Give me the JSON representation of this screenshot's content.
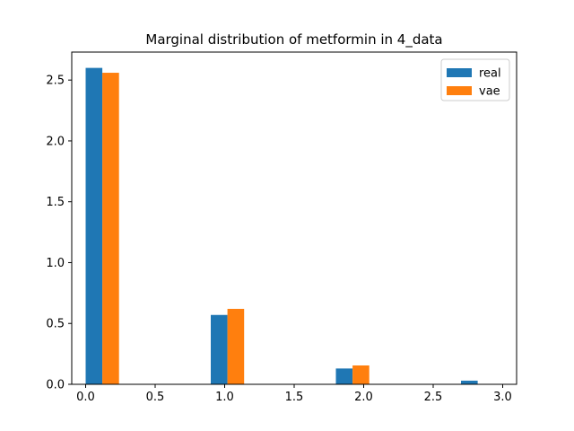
{
  "chart_data": {
    "type": "bar",
    "title": "Marginal distribution of metformin in 4_data",
    "xlabel": "",
    "ylabel": "",
    "xlim": [
      -0.1,
      3.1
    ],
    "ylim": [
      0,
      2.73
    ],
    "xticks": [
      0.0,
      0.5,
      1.0,
      1.5,
      2.0,
      2.5,
      3.0
    ],
    "xtick_labels": [
      "0.0",
      "0.5",
      "1.0",
      "1.5",
      "2.0",
      "2.5",
      "3.0"
    ],
    "yticks": [
      0.0,
      0.5,
      1.0,
      1.5,
      2.0,
      2.5
    ],
    "ytick_labels": [
      "0.0",
      "0.5",
      "1.0",
      "1.5",
      "2.0",
      "2.5"
    ],
    "grid": false,
    "legend_position": "top-right",
    "bar_width": 0.12,
    "series": [
      {
        "name": "real",
        "color": "#1f77b4",
        "x": [
          0.0,
          0.9,
          1.8,
          2.7
        ],
        "values": [
          2.6,
          0.57,
          0.13,
          0.03
        ]
      },
      {
        "name": "vae",
        "color": "#ff7f0e",
        "x": [
          0.12,
          1.02,
          1.92
        ],
        "values": [
          2.56,
          0.62,
          0.155
        ]
      }
    ]
  }
}
